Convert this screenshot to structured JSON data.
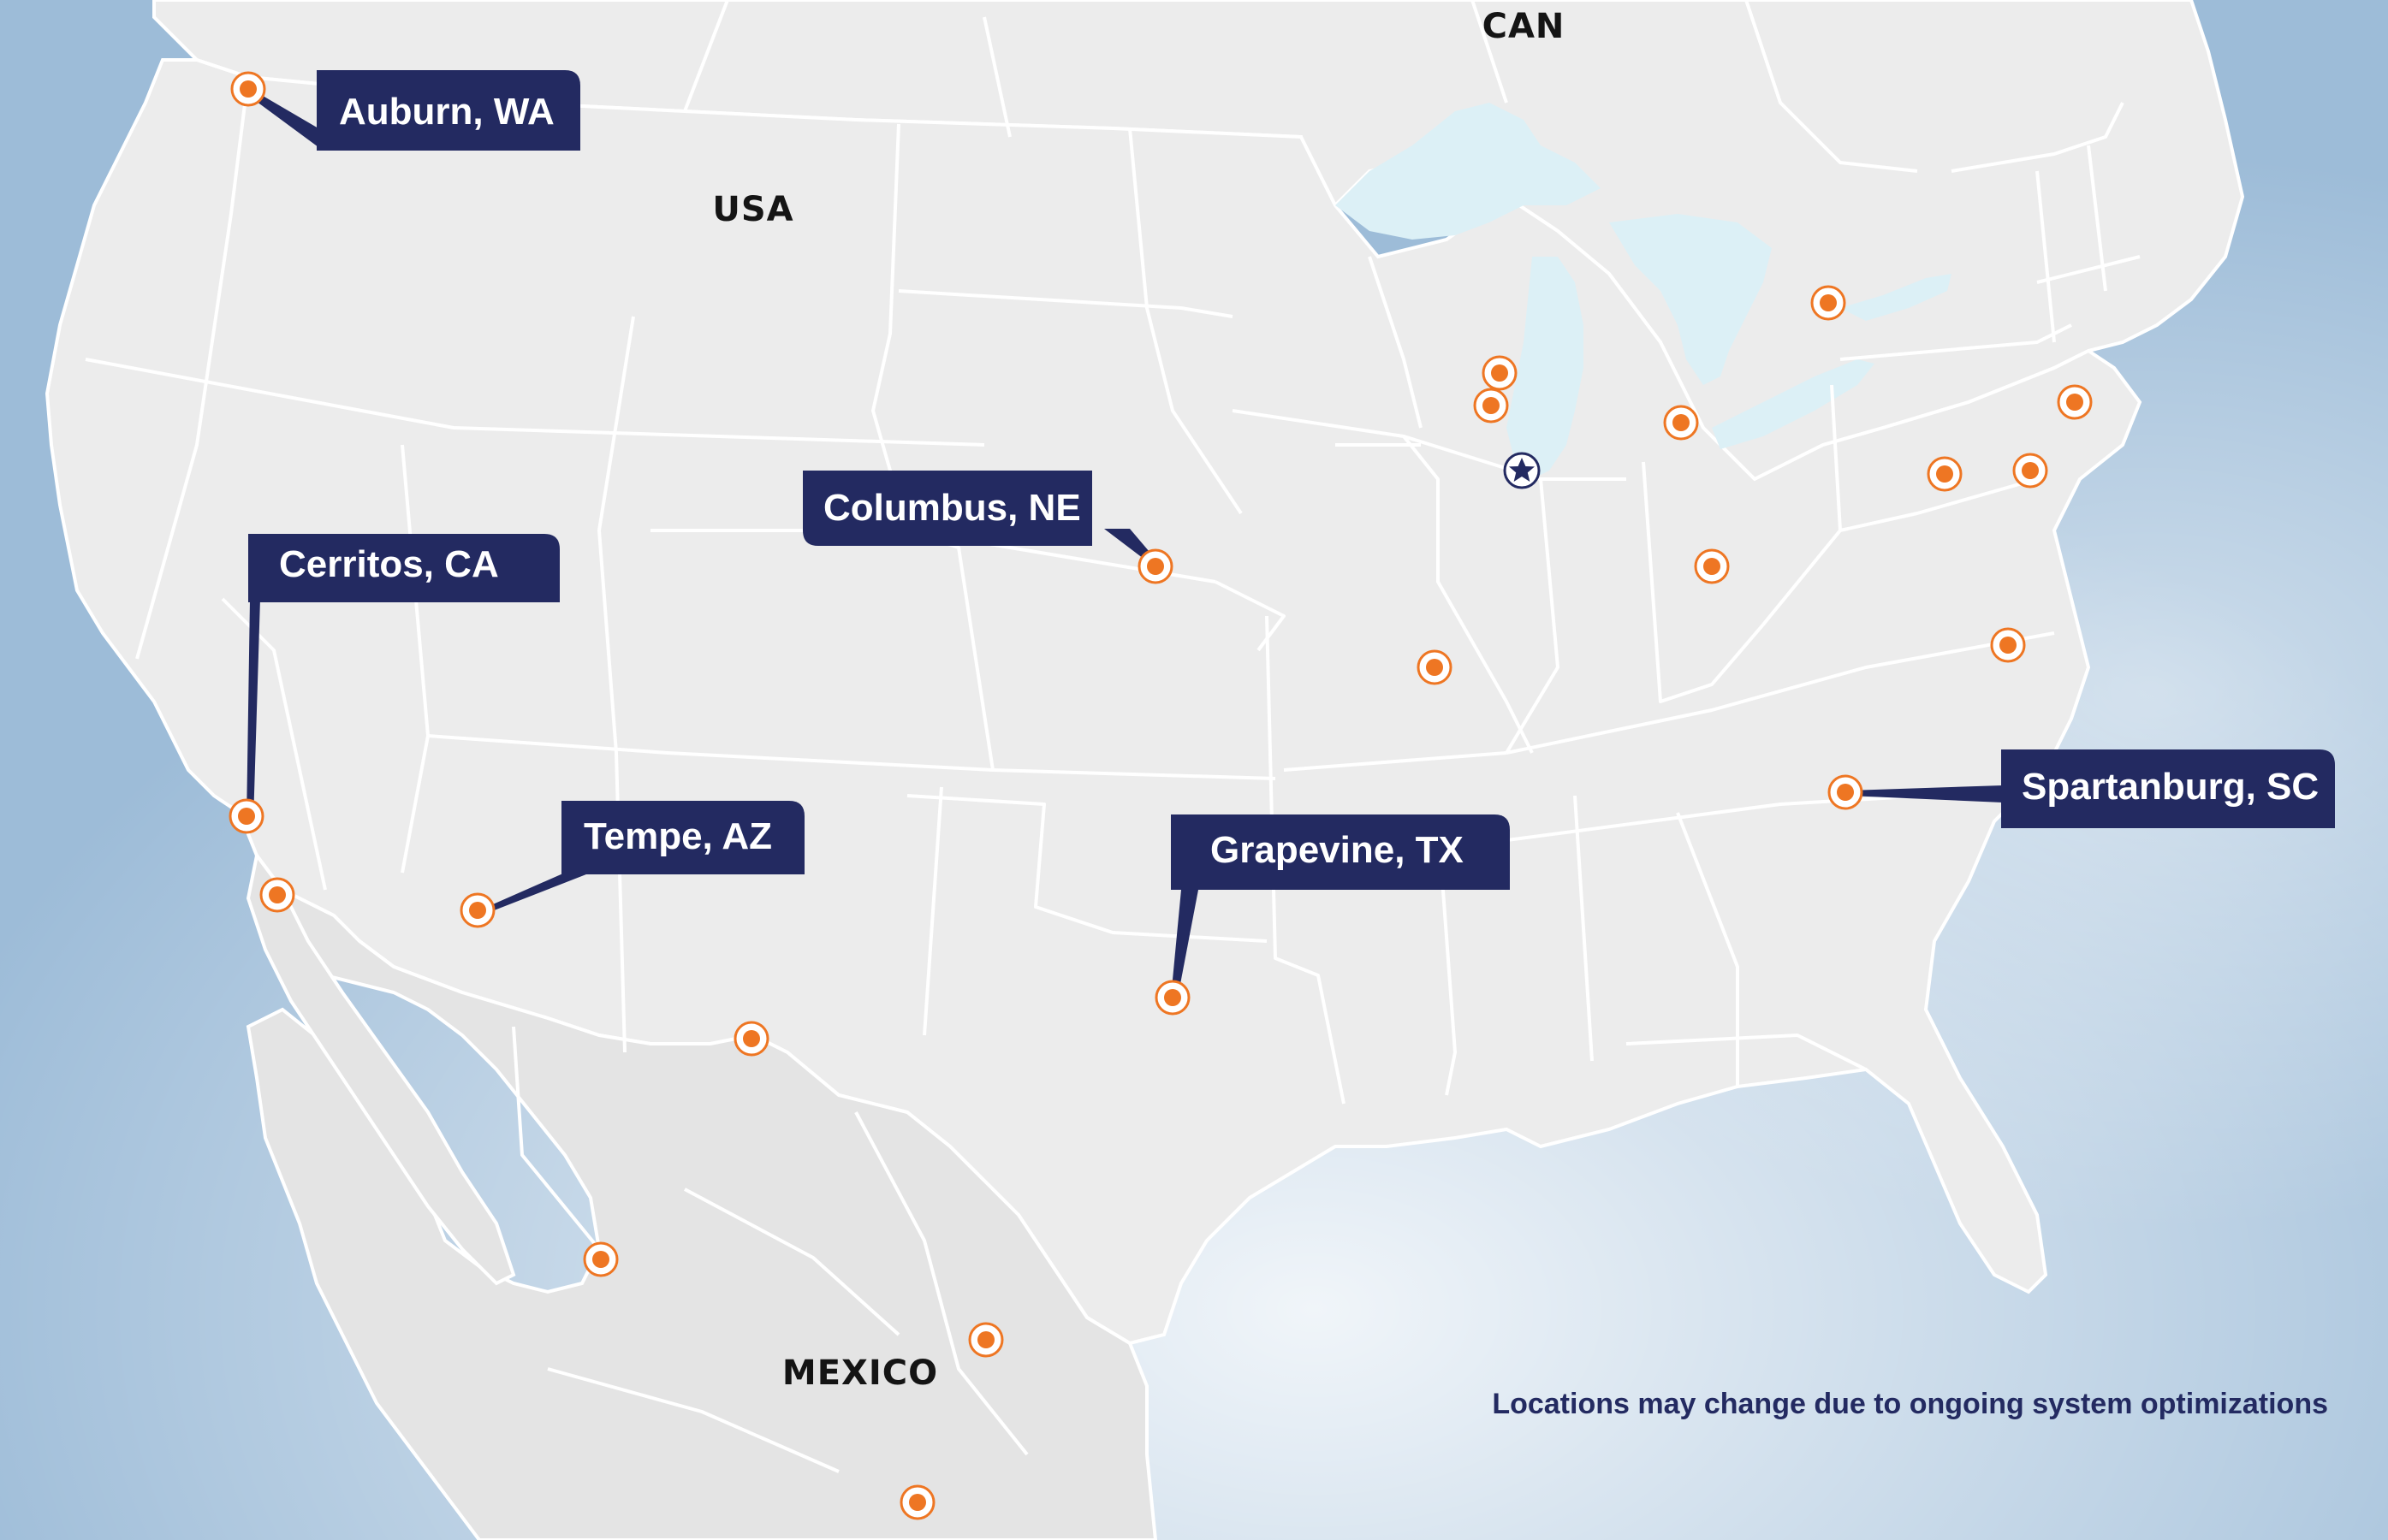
{
  "labels": {
    "canada": "CAN",
    "usa": "USA",
    "mexico": "MEXICO"
  },
  "callouts": {
    "auburn": "Auburn, WA",
    "cerritos": "Cerritos, CA",
    "columbus": "Columbus, NE",
    "tempe": "Tempe, AZ",
    "grapevine": "Grapevine, TX",
    "spartanburg": "Spartanburg, SC"
  },
  "note": "Locations may change due to ongoing system optimizations",
  "colors": {
    "ocean": "#9dbcd8",
    "land": "#ececec",
    "mexico_land": "#e4e4e4",
    "lakes": "#dcf0f6",
    "borders": "#ffffff",
    "marker": "#ee7623",
    "callout": "#232a61"
  },
  "icons": {
    "location": "location-marker-icon",
    "headquarters": "star-icon"
  }
}
